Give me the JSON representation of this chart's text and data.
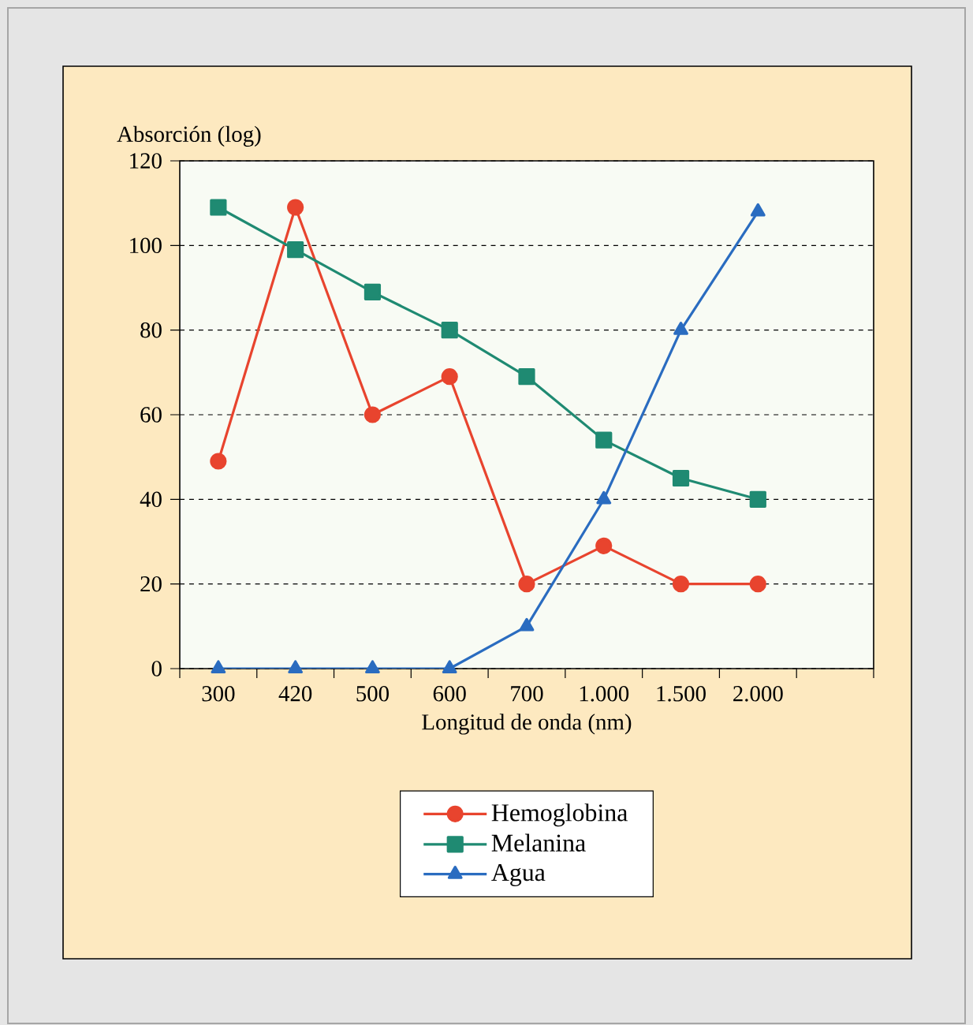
{
  "chart_data": {
    "type": "line",
    "xlabel": "Longitud de onda (nm)",
    "ylabel": "Absorción (log)",
    "categories": [
      "300",
      "420",
      "500",
      "600",
      "700",
      "1.000",
      "1.500",
      "2.000",
      null
    ],
    "series": [
      {
        "name": "Hemoglobina",
        "color": "#e8442e",
        "marker": "circle",
        "values": [
          49,
          109,
          60,
          69,
          20,
          29,
          20,
          20,
          null
        ]
      },
      {
        "name": "Melanina",
        "color": "#1f8a72",
        "marker": "square",
        "values": [
          109,
          99,
          89,
          80,
          69,
          54,
          45,
          40,
          null
        ]
      },
      {
        "name": "Agua",
        "color": "#2a6cc0",
        "marker": "triangle",
        "values": [
          0,
          0,
          0,
          0,
          10,
          40,
          80,
          108,
          null
        ]
      }
    ],
    "ylim": [
      0,
      120
    ],
    "yticks": [
      0,
      20,
      40,
      60,
      80,
      100,
      120
    ],
    "grid": "y",
    "legend": "bottom",
    "line_style": "solid"
  }
}
